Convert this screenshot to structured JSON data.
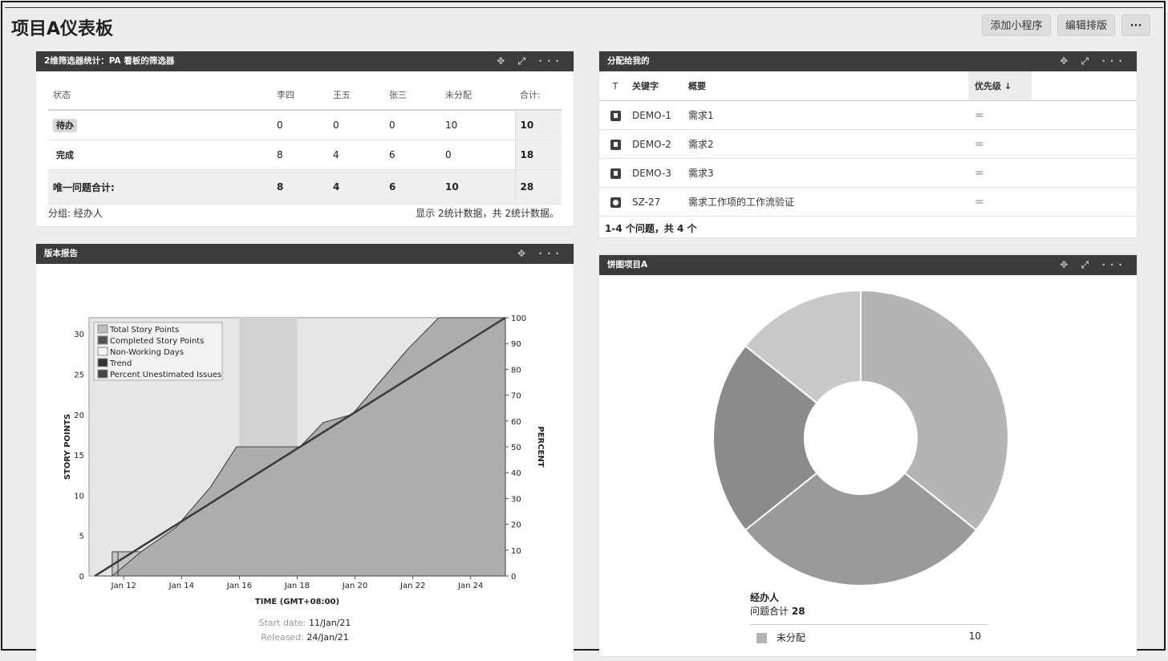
{
  "page": {
    "title": "项目A仪表板",
    "buttons": {
      "add_gadget": "添加小程序",
      "edit_layout": "编辑排版",
      "more": "···"
    }
  },
  "gadget_icons": {
    "move": "✥",
    "expand": "⤢",
    "menu": "···"
  },
  "filter_stats": {
    "title": "2维筛选器统计：PA 看板的筛选器",
    "headers": [
      "状态",
      "李四",
      "王五",
      "张三",
      "未分配",
      "合计:"
    ],
    "rows": [
      {
        "status": "待办",
        "values": [
          "0",
          "0",
          "0",
          "10"
        ],
        "total": "10"
      },
      {
        "status": "完成",
        "values": [
          "8",
          "4",
          "6",
          "0"
        ],
        "total": "18"
      }
    ],
    "summary": {
      "label": "唯一问题合计:",
      "values": [
        "8",
        "4",
        "6",
        "10"
      ],
      "total": "28"
    },
    "group_by": "分组: 经办人",
    "shown_text": "显示 2统计数据，共 2统计数据。"
  },
  "assigned": {
    "title": "分配给我的",
    "headers": {
      "type": "T",
      "key": "关键字",
      "summary": "概要",
      "priority": "优先级 ↓"
    },
    "rows": [
      {
        "type_icon": "story-icon",
        "key": "DEMO-1",
        "summary": "需求1",
        "priority": "="
      },
      {
        "type_icon": "story-icon",
        "key": "DEMO-2",
        "summary": "需求2",
        "priority": "="
      },
      {
        "type_icon": "story-icon",
        "key": "DEMO-3",
        "summary": "需求3",
        "priority": "="
      },
      {
        "type_icon": "subtask-icon",
        "key": "SZ-27",
        "summary": "需求工作项的工作流验证",
        "priority": "="
      }
    ],
    "footer": "1-4 个问题，共 4 个"
  },
  "version_report": {
    "title": "版本报告",
    "start_label": "Start date:",
    "start_value": "11/Jan/21",
    "released_label": "Released:",
    "released_value": "24/Jan/21"
  },
  "pie_gadget": {
    "title": "饼图项目A",
    "group_label": "经办人",
    "total_label": "问题合计",
    "total_value": "28",
    "first_legend": {
      "name": "未分配",
      "value": "10"
    }
  },
  "chart_data": [
    {
      "type": "line",
      "xlabel": "TIME (GMT+08:00)",
      "ylabel": "STORY POINTS",
      "y2label": "PERCENT",
      "x_ticks": [
        "Jan 12",
        "Jan 14",
        "Jan 16",
        "Jan 18",
        "Jan 20",
        "Jan 22",
        "Jan 24"
      ],
      "y_ticks": [
        0,
        5,
        10,
        15,
        20,
        25,
        30
      ],
      "y2_ticks": [
        0,
        10,
        20,
        30,
        40,
        50,
        60,
        70,
        80,
        90,
        100
      ],
      "ylim": [
        0,
        32
      ],
      "y2lim": [
        0,
        100
      ],
      "xlim": [
        10.8,
        25.2
      ],
      "legend": [
        "Total Story Points",
        "Completed Story Points",
        "Non-Working Days",
        "Trend",
        "Percent Unestimated Issues"
      ],
      "legend_position": "top-left",
      "non_working_days": [
        [
          16,
          18
        ],
        [
          23,
          25.2
        ]
      ],
      "total_story_points": [
        [
          11.6,
          3
        ],
        [
          12.6,
          3
        ],
        [
          12.6,
          3
        ],
        [
          13.8,
          6
        ],
        [
          15,
          11
        ],
        [
          15.9,
          16
        ],
        [
          18.1,
          16
        ],
        [
          18.9,
          19
        ],
        [
          19.9,
          20
        ],
        [
          21.8,
          28
        ],
        [
          22.9,
          32
        ],
        [
          25.2,
          32
        ]
      ],
      "completed_story_points": [
        [
          11,
          0
        ],
        [
          11.6,
          0
        ],
        [
          11.6,
          0
        ],
        [
          12.6,
          3
        ],
        [
          13.8,
          6
        ],
        [
          15,
          11
        ],
        [
          15.9,
          16
        ],
        [
          18.1,
          16
        ],
        [
          18.9,
          19
        ],
        [
          19.9,
          20
        ],
        [
          21.8,
          28
        ],
        [
          22.9,
          32
        ],
        [
          25.2,
          32
        ]
      ],
      "trend": [
        [
          11,
          0
        ],
        [
          25.2,
          32
        ]
      ]
    },
    {
      "type": "pie",
      "donut": true,
      "slices": [
        {
          "name": "未分配",
          "value": 10
        },
        {
          "name": "",
          "value": 8
        },
        {
          "name": "",
          "value": 6
        },
        {
          "name": "",
          "value": 4
        }
      ],
      "colors": [
        "#b4b4b4",
        "#9a9a9a",
        "#8b8b8b",
        "#c9c9c9"
      ]
    }
  ]
}
